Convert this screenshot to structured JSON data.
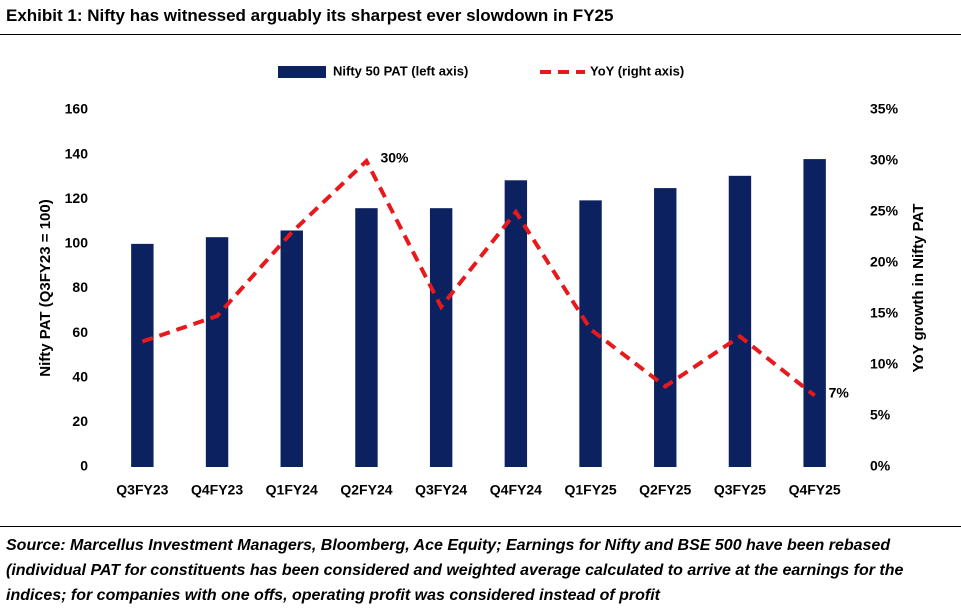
{
  "title": "Exhibit 1: Nifty has witnessed arguably its sharpest ever slowdown in FY25",
  "source": "Source: Marcellus Investment Managers, Bloomberg, Ace Equity; Earnings for Nifty and BSE 500 have been rebased (individual PAT for constituents has been considered and weighted average calculated to arrive at the earnings for the indices; for companies with one offs, operating profit was considered instead of profit",
  "chart_data": {
    "type": "bar-line",
    "categories": [
      "Q3FY23",
      "Q4FY23",
      "Q1FY24",
      "Q2FY24",
      "Q3FY24",
      "Q4FY24",
      "Q1FY25",
      "Q2FY25",
      "Q3FY25",
      "Q4FY25"
    ],
    "series": [
      {
        "name": "Nifty 50 PAT (left axis)",
        "type": "bar",
        "color": "#0c2260",
        "values": [
          100,
          103,
          106,
          116,
          116,
          128.5,
          119.5,
          125,
          130.5,
          138
        ]
      },
      {
        "name": "YoY (right axis)",
        "type": "line",
        "axis": "y2",
        "color": "#e8191c",
        "values": [
          12.3,
          14.8,
          23,
          30,
          15.7,
          25,
          13.5,
          7.9,
          12.8,
          7
        ],
        "value_labels": [
          null,
          null,
          null,
          "30%",
          null,
          null,
          null,
          null,
          null,
          "7%"
        ]
      }
    ],
    "ylabel": "Nifty PAT (Q3FY23 = 100)",
    "y2label": "YoY growth in Nifty PAT",
    "ylim": [
      0,
      160
    ],
    "yticks": [
      0,
      20,
      40,
      60,
      80,
      100,
      120,
      140,
      160
    ],
    "y2lim": [
      0,
      35
    ],
    "y2ticks": [
      {
        "value": 0,
        "label": "0%"
      },
      {
        "value": 5,
        "label": "5%"
      },
      {
        "value": 10,
        "label": "10%"
      },
      {
        "value": 15,
        "label": "15%"
      },
      {
        "value": 20,
        "label": "20%"
      },
      {
        "value": 25,
        "label": "25%"
      },
      {
        "value": 30,
        "label": "30%"
      },
      {
        "value": 35,
        "label": "35%"
      }
    ],
    "legend": "top",
    "grid": false
  }
}
